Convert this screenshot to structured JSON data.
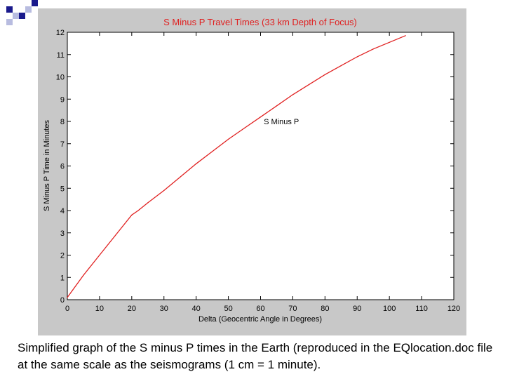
{
  "caption": "Simplified graph of the S minus P times in the Earth (reproduced in the EQlocation.doc file at the same scale as the seismograms (1 cm = 1 minute).",
  "chart_data": {
    "type": "line",
    "title": "S Minus P Travel Times (33 km Depth of Focus)",
    "xlabel": "Delta (Geocentric Angle in Degrees)",
    "ylabel": "S Minus P Time in Minutes",
    "xlim": [
      0,
      120
    ],
    "ylim": [
      0,
      12
    ],
    "xticks": [
      "0",
      "10",
      "20",
      "30",
      "40",
      "50",
      "60",
      "70",
      "80",
      "90",
      "100",
      "110",
      "120"
    ],
    "yticks": [
      "0",
      "1",
      "2",
      "3",
      "4",
      "5",
      "6",
      "7",
      "8",
      "9",
      "10",
      "11",
      "12"
    ],
    "grid": false,
    "annotation": {
      "text": "S Minus P",
      "x": 61,
      "y": 8
    },
    "series": [
      {
        "color": "#e02020",
        "x": [
          0,
          5,
          10,
          15,
          20,
          22,
          25,
          30,
          35,
          40,
          45,
          50,
          55,
          60,
          65,
          70,
          75,
          80,
          85,
          90,
          95,
          100,
          105
        ],
        "y": [
          0.1,
          1.1,
          2.0,
          2.9,
          3.8,
          4.0,
          4.35,
          4.9,
          5.5,
          6.1,
          6.65,
          7.2,
          7.7,
          8.2,
          8.7,
          9.2,
          9.65,
          10.1,
          10.5,
          10.9,
          11.25,
          11.55,
          11.85
        ]
      }
    ]
  },
  "colors": {
    "figure_background": "#c8c8c8",
    "plot_background": "#ffffff",
    "title_color": "#e02020",
    "deco_blue": "#1a1a8c",
    "deco_light": "#b8bce0"
  }
}
